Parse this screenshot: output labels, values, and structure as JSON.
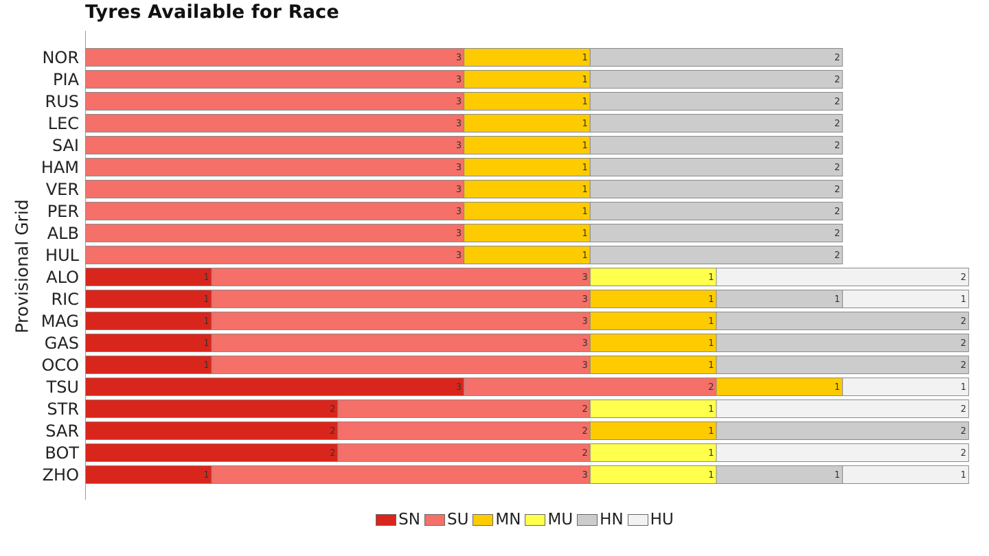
{
  "chart_data": {
    "type": "bar",
    "orientation": "horizontal",
    "stacked": true,
    "title": "Tyres Available for Race",
    "ylabel": "Provisional Grid",
    "xlabel": "",
    "grid": false,
    "legend_position": "bottom",
    "xlim": [
      0,
      7
    ],
    "categories": [
      "NOR",
      "PIA",
      "RUS",
      "LEC",
      "SAI",
      "HAM",
      "VER",
      "PER",
      "ALB",
      "HUL",
      "ALO",
      "RIC",
      "MAG",
      "GAS",
      "OCO",
      "TSU",
      "STR",
      "SAR",
      "BOT",
      "ZHO"
    ],
    "series": [
      {
        "name": "SN",
        "color": "#d9261c",
        "values": [
          0,
          0,
          0,
          0,
          0,
          0,
          0,
          0,
          0,
          0,
          1,
          1,
          1,
          1,
          1,
          3,
          2,
          2,
          2,
          1
        ]
      },
      {
        "name": "SU",
        "color": "#f47068",
        "values": [
          3,
          3,
          3,
          3,
          3,
          3,
          3,
          3,
          3,
          3,
          3,
          3,
          3,
          3,
          3,
          2,
          2,
          2,
          2,
          3
        ]
      },
      {
        "name": "MN",
        "color": "#fecb00",
        "values": [
          1,
          1,
          1,
          1,
          1,
          1,
          1,
          1,
          1,
          1,
          0,
          1,
          1,
          1,
          1,
          1,
          0,
          1,
          0,
          0
        ]
      },
      {
        "name": "MU",
        "color": "#ffff4d",
        "values": [
          0,
          0,
          0,
          0,
          0,
          0,
          0,
          0,
          0,
          0,
          1,
          0,
          0,
          0,
          0,
          0,
          1,
          0,
          1,
          1
        ]
      },
      {
        "name": "HN",
        "color": "#cccccc",
        "values": [
          2,
          2,
          2,
          2,
          2,
          2,
          2,
          2,
          2,
          2,
          0,
          1,
          2,
          2,
          2,
          0,
          0,
          2,
          0,
          1
        ]
      },
      {
        "name": "HU",
        "color": "#f2f2f2",
        "values": [
          0,
          0,
          0,
          0,
          0,
          0,
          0,
          0,
          0,
          0,
          2,
          1,
          0,
          0,
          0,
          1,
          2,
          0,
          2,
          1
        ]
      }
    ]
  }
}
